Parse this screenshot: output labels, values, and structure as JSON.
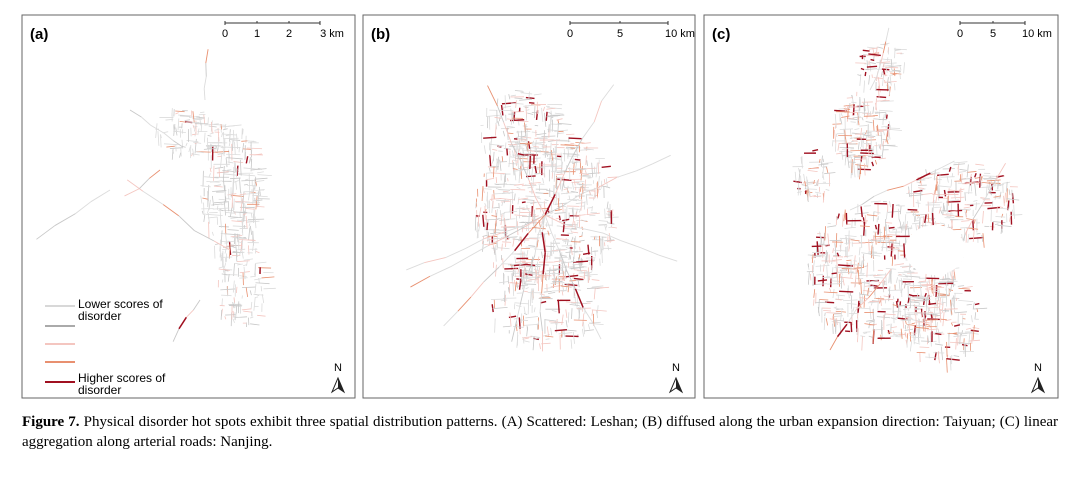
{
  "panels": [
    {
      "label": "(a)",
      "scale_ticks": [
        "0",
        "1",
        "2",
        "3 km"
      ],
      "north": "N"
    },
    {
      "label": "(b)",
      "scale_ticks": [
        "0",
        "5",
        "10 km"
      ],
      "north": "N"
    },
    {
      "label": "(c)",
      "scale_ticks": [
        "0",
        "5",
        "10 km"
      ],
      "north": "N"
    }
  ],
  "legend": {
    "low": "Lower scores of disorder",
    "high": "Higher scores of disorder"
  },
  "caption": {
    "label": "Figure 7.",
    "text": "Physical disorder hot spots exhibit three spatial distribution patterns. (A) Scattered: Leshan; (B) diffused along the urban expansion direction: Taiyuan; (C) linear aggregation along arterial roads: Nanjing."
  }
}
